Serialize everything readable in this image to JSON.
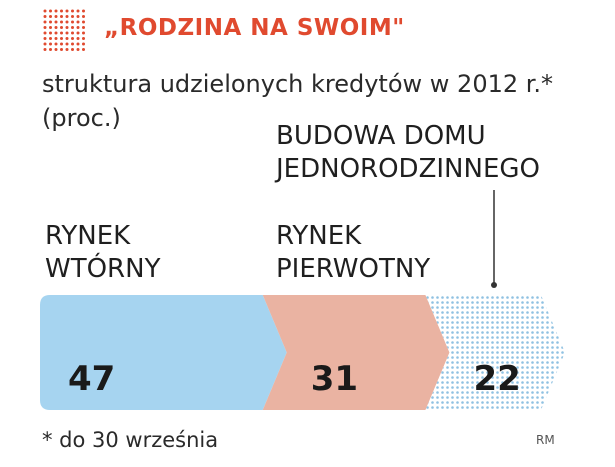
{
  "header": {
    "title": "„RODZINA NA SWOIM\"",
    "subtitle": "struktura udzielonych kredytów w 2012 r.*",
    "unit": "(proc.)"
  },
  "footer": {
    "footnote": "* do 30 września",
    "credit": "RM"
  },
  "colors": {
    "accent": "#e04a2f",
    "series": [
      "#a6d4f0",
      "#eab3a2",
      "#a9cfe8"
    ]
  },
  "chart_data": {
    "type": "bar",
    "stacked": true,
    "orientation": "horizontal",
    "title": "„RODZINA NA SWOIM\"",
    "subtitle": "struktura udzielonych kredytów w 2012 r.*",
    "categories": [
      "RYNEK\nWTÓRNY",
      "RYNEK\nPIERWOTNY",
      "BUDOWA DOMU\nJEDNORODZINNEGO"
    ],
    "values": [
      47,
      31,
      22
    ],
    "value_labels": [
      "47",
      "31",
      "22"
    ],
    "unit": "(proc.)",
    "legend": "none",
    "grid": false
  }
}
